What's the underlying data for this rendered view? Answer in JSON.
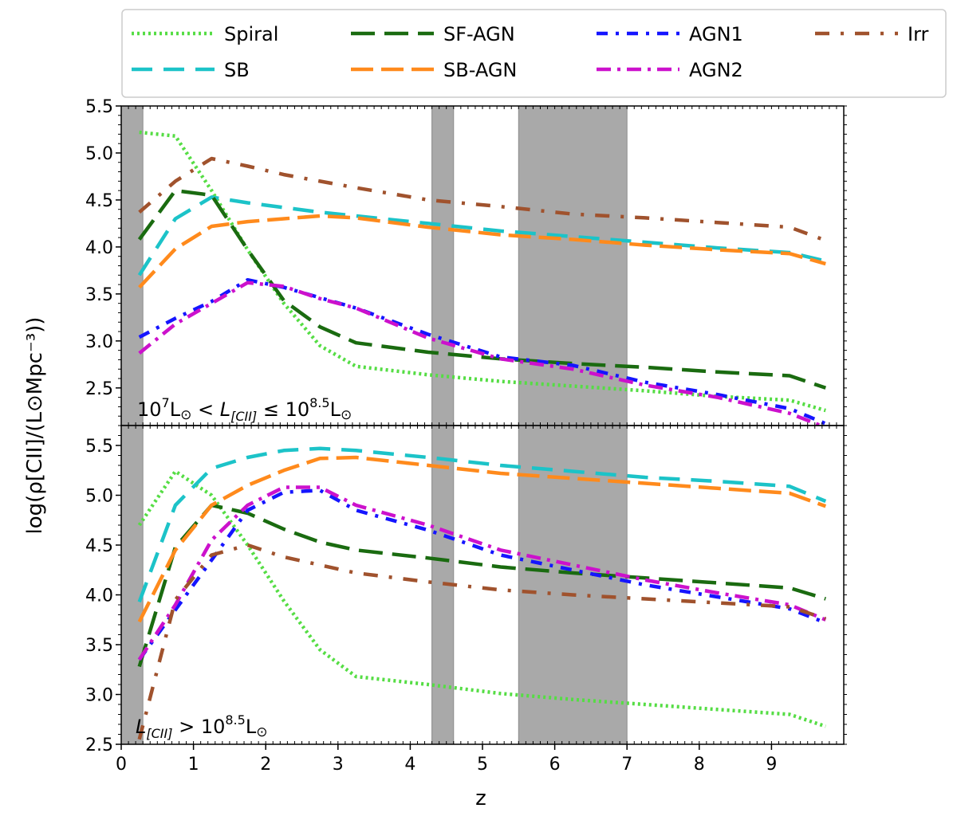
{
  "chart_data": {
    "type": "line",
    "xlabel": "z",
    "ylabel": "log(ρ[CII]/(L⊙Mpc⁻³))",
    "xlim": [
      0,
      10
    ],
    "x_ticks": [
      "0",
      "1",
      "2",
      "3",
      "4",
      "5",
      "6",
      "7",
      "8",
      "9"
    ],
    "shaded_z_ranges": [
      [
        0,
        0.3
      ],
      [
        4.3,
        4.6
      ],
      [
        5.5,
        7.0
      ]
    ],
    "legend": {
      "placement": "top",
      "entries": [
        "Spiral",
        "SF-AGN",
        "AGN1",
        "Irr",
        "SB",
        "SB-AGN",
        "AGN2"
      ]
    },
    "series_style": {
      "Spiral": {
        "color": "#55dd44",
        "dash": "3,4"
      },
      "SB": {
        "color": "#1cc3c8",
        "dash": "26,14"
      },
      "SF-AGN": {
        "color": "#1a6b10",
        "dash": "30,12"
      },
      "SB-AGN": {
        "color": "#ff8a1c",
        "dash": "28,10"
      },
      "AGN1": {
        "color": "#1515ff",
        "dash": "14,10,4,10"
      },
      "AGN2": {
        "color": "#cc11cc",
        "dash": "18,8,4,8"
      },
      "Irr": {
        "color": "#a0522d",
        "dash": "18,14,4,14"
      }
    },
    "panels": [
      {
        "annotation": {
          "part1": "10",
          "sup1": "7",
          "part2": "L",
          "sun": "⊙",
          "part3": " < ",
          "L": "L",
          "sub": "[CII]",
          "part4": " ≤ 10",
          "sup2": "8.5",
          "part5": "L",
          "sun2": "⊙"
        },
        "ylim": [
          2.1,
          5.5
        ],
        "y_ticks": [
          "2.5",
          "3.0",
          "3.5",
          "4.0",
          "4.5",
          "5.0",
          "5.5"
        ],
        "series": [
          {
            "name": "Spiral",
            "x": [
              0.25,
              0.75,
              1.25,
              1.75,
              2.25,
              2.75,
              3.25,
              4.25,
              5.25,
              6.25,
              7.25,
              8.25,
              9.25,
              9.75
            ],
            "values": [
              5.22,
              5.18,
              4.6,
              3.97,
              3.4,
              2.95,
              2.73,
              2.64,
              2.57,
              2.52,
              2.47,
              2.41,
              2.37,
              2.26
            ]
          },
          {
            "name": "SB",
            "x": [
              0.25,
              0.75,
              1.25,
              1.75,
              2.25,
              2.75,
              3.25,
              4.25,
              5.25,
              6.25,
              7.25,
              8.25,
              9.25,
              9.75
            ],
            "values": [
              3.7,
              4.3,
              4.53,
              4.47,
              4.42,
              4.37,
              4.33,
              4.25,
              4.17,
              4.11,
              4.05,
              3.99,
              3.94,
              3.85
            ]
          },
          {
            "name": "SF-AGN",
            "x": [
              0.25,
              0.75,
              1.25,
              1.75,
              2.25,
              2.75,
              3.25,
              4.25,
              5.25,
              6.25,
              7.25,
              8.25,
              9.25,
              9.75
            ],
            "values": [
              4.08,
              4.6,
              4.55,
              3.97,
              3.43,
              3.15,
              2.98,
              2.88,
              2.81,
              2.76,
              2.72,
              2.67,
              2.63,
              2.5
            ]
          },
          {
            "name": "SB-AGN",
            "x": [
              0.25,
              0.75,
              1.25,
              1.75,
              2.25,
              2.75,
              3.25,
              4.25,
              5.25,
              6.25,
              7.25,
              8.25,
              9.25,
              9.75
            ],
            "values": [
              3.57,
              3.98,
              4.22,
              4.27,
              4.3,
              4.33,
              4.31,
              4.21,
              4.13,
              4.08,
              4.02,
              3.97,
              3.93,
              3.82
            ]
          },
          {
            "name": "AGN1",
            "x": [
              0.25,
              0.75,
              1.25,
              1.75,
              2.25,
              2.75,
              3.25,
              4.25,
              5.25,
              6.25,
              7.25,
              8.25,
              9.25,
              9.75
            ],
            "values": [
              3.04,
              3.24,
              3.42,
              3.65,
              3.57,
              3.46,
              3.35,
              3.07,
              2.83,
              2.74,
              2.56,
              2.43,
              2.28,
              2.12
            ]
          },
          {
            "name": "AGN2",
            "x": [
              0.25,
              0.75,
              1.25,
              1.75,
              2.25,
              2.75,
              3.25,
              4.25,
              5.25,
              6.25,
              7.25,
              8.25,
              9.25,
              9.75
            ],
            "values": [
              2.87,
              3.18,
              3.4,
              3.62,
              3.58,
              3.45,
              3.35,
              3.03,
              2.81,
              2.7,
              2.53,
              2.4,
              2.23,
              2.08
            ]
          },
          {
            "name": "Irr",
            "x": [
              0.25,
              0.75,
              1.25,
              1.75,
              2.25,
              2.75,
              3.25,
              4.25,
              5.25,
              6.25,
              7.25,
              8.25,
              9.25,
              9.75
            ],
            "values": [
              4.37,
              4.7,
              4.94,
              4.86,
              4.77,
              4.7,
              4.63,
              4.5,
              4.43,
              4.35,
              4.31,
              4.26,
              4.21,
              4.07
            ]
          }
        ]
      },
      {
        "annotation": {
          "L": "L",
          "sub": "[CII]",
          "part1": " > 10",
          "sup1": "8.5",
          "part2": "L",
          "sun": "⊙"
        },
        "ylim": [
          2.5,
          5.7
        ],
        "y_ticks": [
          "2.5",
          "3.0",
          "3.5",
          "4.0",
          "4.5",
          "5.0",
          "5.5"
        ],
        "series": [
          {
            "name": "Spiral",
            "x": [
              0.25,
              0.75,
              1.25,
              1.75,
              2.25,
              2.75,
              3.25,
              4.25,
              5.25,
              6.25,
              7.25,
              8.25,
              9.25,
              9.75
            ],
            "values": [
              4.7,
              5.24,
              5.0,
              4.5,
              3.94,
              3.45,
              3.18,
              3.1,
              3.01,
              2.95,
              2.9,
              2.85,
              2.8,
              2.68
            ]
          },
          {
            "name": "SB",
            "x": [
              0.25,
              0.75,
              1.25,
              1.75,
              2.25,
              2.75,
              3.25,
              4.25,
              5.25,
              6.25,
              7.25,
              8.25,
              9.25,
              9.75
            ],
            "values": [
              3.93,
              4.9,
              5.27,
              5.38,
              5.45,
              5.47,
              5.45,
              5.38,
              5.3,
              5.24,
              5.18,
              5.14,
              5.09,
              4.94
            ]
          },
          {
            "name": "SF-AGN",
            "x": [
              0.25,
              0.75,
              1.25,
              1.75,
              2.25,
              2.75,
              3.25,
              4.25,
              5.25,
              6.25,
              7.25,
              8.25,
              9.25,
              9.75
            ],
            "values": [
              3.28,
              4.48,
              4.9,
              4.82,
              4.66,
              4.53,
              4.45,
              4.37,
              4.28,
              4.22,
              4.17,
              4.12,
              4.07,
              3.96
            ]
          },
          {
            "name": "SB-AGN",
            "x": [
              0.25,
              0.75,
              1.25,
              1.75,
              2.25,
              2.75,
              3.25,
              4.25,
              5.25,
              6.25,
              7.25,
              8.25,
              9.25,
              9.75
            ],
            "values": [
              3.73,
              4.45,
              4.9,
              5.1,
              5.25,
              5.37,
              5.38,
              5.3,
              5.22,
              5.17,
              5.12,
              5.07,
              5.02,
              4.89
            ]
          },
          {
            "name": "AGN1",
            "x": [
              0.25,
              0.75,
              1.25,
              1.75,
              2.25,
              2.75,
              3.25,
              4.25,
              5.25,
              6.25,
              7.25,
              8.25,
              9.25,
              9.75
            ],
            "values": [
              3.35,
              3.85,
              4.35,
              4.85,
              5.03,
              5.05,
              4.85,
              4.65,
              4.4,
              4.25,
              4.1,
              3.98,
              3.86,
              3.72
            ]
          },
          {
            "name": "AGN2",
            "x": [
              0.25,
              0.75,
              1.25,
              1.75,
              2.25,
              2.75,
              3.25,
              4.25,
              5.25,
              6.25,
              7.25,
              8.25,
              9.25,
              9.75
            ],
            "values": [
              3.35,
              3.9,
              4.55,
              4.9,
              5.08,
              5.08,
              4.9,
              4.7,
              4.45,
              4.3,
              4.15,
              4.02,
              3.9,
              3.75
            ]
          },
          {
            "name": "Irr",
            "x": [
              0.25,
              0.75,
              1.25,
              1.75,
              2.25,
              2.75,
              3.25,
              4.25,
              5.25,
              6.25,
              7.25,
              8.25,
              9.25,
              9.75
            ],
            "values": [
              2.55,
              3.95,
              4.4,
              4.5,
              4.38,
              4.3,
              4.22,
              4.13,
              4.05,
              4.0,
              3.96,
              3.92,
              3.88,
              3.76
            ]
          }
        ]
      }
    ]
  }
}
